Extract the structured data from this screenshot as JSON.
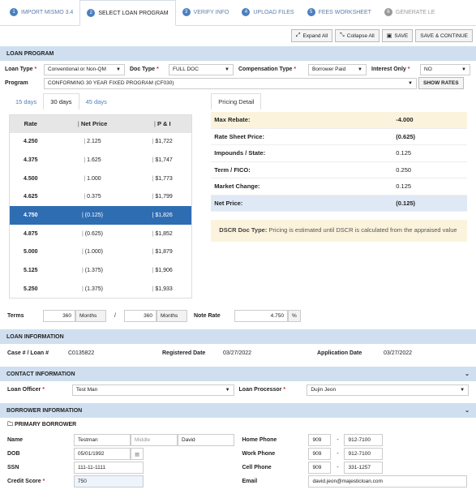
{
  "tabs": [
    {
      "num": "1",
      "label": "IMPORT MISMO 3.4"
    },
    {
      "num": "2",
      "label": "SELECT LOAN PROGRAM"
    },
    {
      "num": "3",
      "label": "VERIFY INFO"
    },
    {
      "num": "4",
      "label": "UPLOAD FILES"
    },
    {
      "num": "5",
      "label": "FEES WORKSHEET"
    },
    {
      "num": "6",
      "label": "GENERATE LE"
    }
  ],
  "toolbar": {
    "expand": "Expand All",
    "collapse": "Collapse All",
    "save": "SAVE",
    "save_continue": "SAVE & CONTINUE"
  },
  "loan_program": {
    "title": "LOAN PROGRAM",
    "loan_type_label": "Loan Type",
    "loan_type": "Conventional or Non-QM",
    "doc_type_label": "Doc Type",
    "doc_type": "FULL DOC",
    "comp_type_label": "Compensation Type",
    "comp_type": "Borrower Paid",
    "interest_only_label": "Interest Only",
    "interest_only": "NO",
    "program_label": "Program",
    "program": "CONFORMING 30 YEAR FIXED PROGRAM (CF030)",
    "show_rates": "SHOW RATES"
  },
  "rate_tabs": [
    "15 days",
    "30 days",
    "45 days"
  ],
  "rate_headers": {
    "rate": "Rate",
    "net": "Net Price",
    "pi": "P & I"
  },
  "rates": [
    {
      "rate": "4.250",
      "net": "2.125",
      "pi": "$1,722"
    },
    {
      "rate": "4.375",
      "net": "1.625",
      "pi": "$1,747"
    },
    {
      "rate": "4.500",
      "net": "1.000",
      "pi": "$1,773"
    },
    {
      "rate": "4.625",
      "net": "0.375",
      "pi": "$1,799"
    },
    {
      "rate": "4.750",
      "net": "(0.125)",
      "pi": "$1,826"
    },
    {
      "rate": "4.875",
      "net": "(0.625)",
      "pi": "$1,852"
    },
    {
      "rate": "5.000",
      "net": "(1.000)",
      "pi": "$1,879"
    },
    {
      "rate": "5.125",
      "net": "(1.375)",
      "pi": "$1,906"
    },
    {
      "rate": "5.250",
      "net": "(1.375)",
      "pi": "$1,933"
    }
  ],
  "pricing": {
    "tab": "Pricing Detail",
    "rows": [
      {
        "k": "Max Rebate:",
        "v": "-4.000"
      },
      {
        "k": "Rate Sheet Price:",
        "v": "(0.625)"
      },
      {
        "k": "Impounds / State:",
        "v": "0.125"
      },
      {
        "k": "Term / FICO:",
        "v": "0.250"
      },
      {
        "k": "Market Change:",
        "v": "0.125"
      },
      {
        "k": "Net Price:",
        "v": "(0.125)"
      }
    ],
    "dscr_label": "DSCR Doc Type:",
    "dscr_text": " Pricing is estimated until DSCR is calculated from the appraised value"
  },
  "terms": {
    "label": "Terms",
    "t1": "360",
    "months": "Months",
    "slash": "/",
    "t2": "360",
    "note_label": "Note Rate",
    "note_rate": "4.750",
    "pct": "%"
  },
  "loan_info": {
    "title": "LOAN INFORMATION",
    "case_label": "Case # / Loan #",
    "case": "C0135822",
    "reg_label": "Registered Date",
    "reg": "03/27/2022",
    "app_label": "Application Date",
    "app": "03/27/2022"
  },
  "contact": {
    "title": "CONTACT INFORMATION",
    "officer_label": "Loan Officer",
    "officer": "Test Man",
    "processor_label": "Loan Processor",
    "processor": "Dujin Jeon"
  },
  "borrower": {
    "title": "BORROWER INFORMATION",
    "primary": "PRIMARY BORROWER",
    "name_label": "Name",
    "first": "Testman",
    "middle_ph": "Middle",
    "last": "David",
    "dob_label": "DOB",
    "dob": "05/01/1992",
    "ssn_label": "SSN",
    "ssn": "111-11-1111",
    "credit_label": "Credit Score",
    "credit": "750",
    "home_label": "Home Phone",
    "home_a": "909",
    "home_b": "912-7100",
    "work_label": "Work Phone",
    "work_a": "909",
    "work_b": "912-7100",
    "cell_label": "Cell Phone",
    "cell_a": "909",
    "cell_b": "331-1257",
    "email_label": "Email",
    "email": "david.jeon@majesticloan.com",
    "dash": "-"
  }
}
